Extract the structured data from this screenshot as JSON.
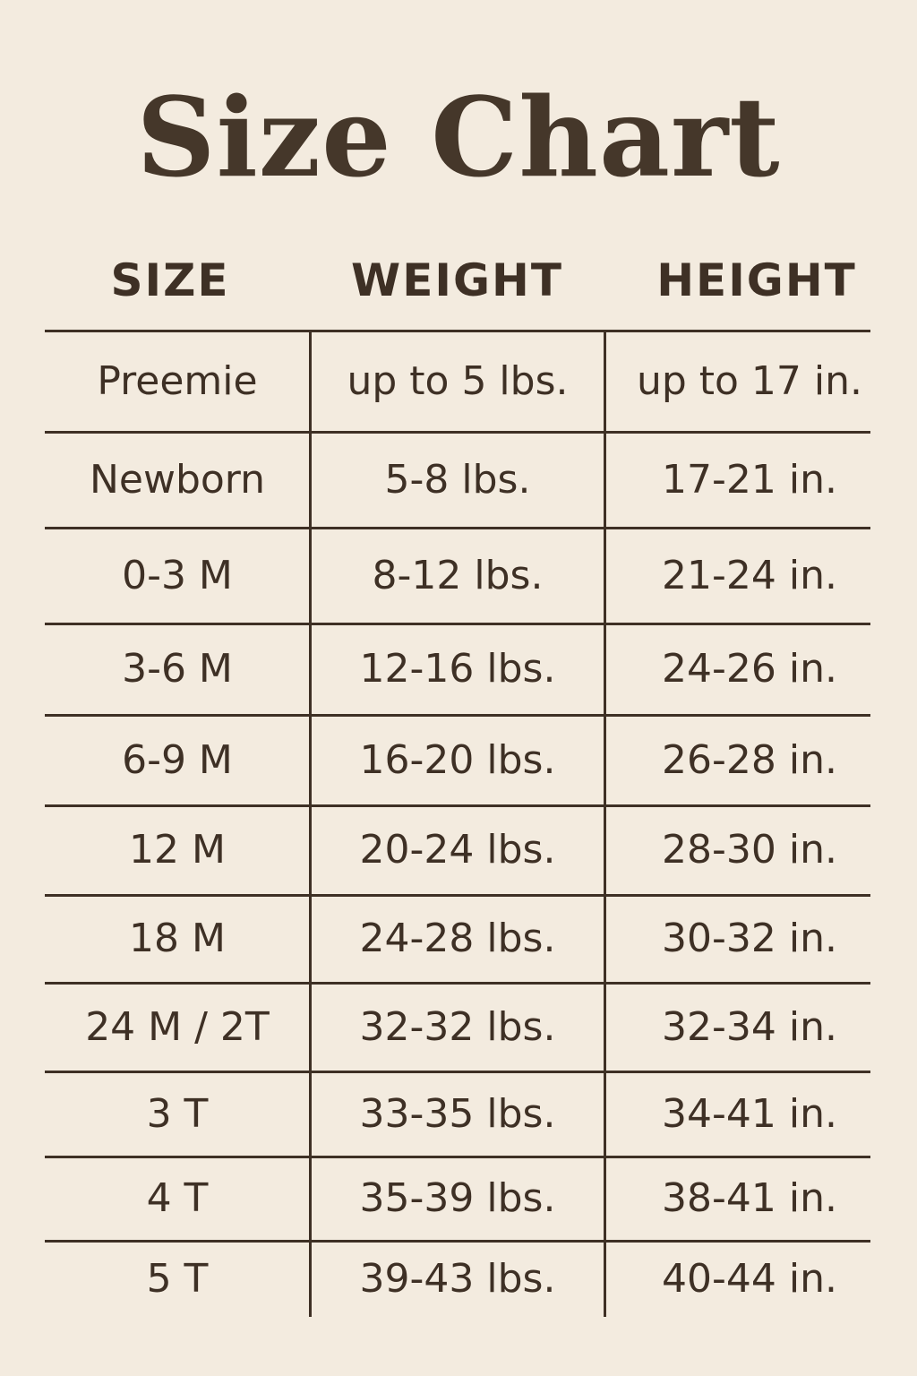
{
  "title": "Size Chart",
  "columns": [
    "SIZE",
    "WEIGHT",
    "HEIGHT"
  ],
  "rows": [
    [
      "Preemie",
      "up to 5 lbs.",
      "up to 17 in."
    ],
    [
      "Newborn",
      "5-8 lbs.",
      "17-21 in."
    ],
    [
      "0-3 M",
      "8-12 lbs.",
      "21-24 in."
    ],
    [
      "3-6 M",
      "12-16 lbs.",
      "24-26 in."
    ],
    [
      "6-9 M",
      "16-20 lbs.",
      "26-28 in."
    ],
    [
      "12 M",
      "20-24 lbs.",
      "28-30 in."
    ],
    [
      "18 M",
      "24-28 lbs.",
      "30-32 in."
    ],
    [
      "24 M / 2T",
      "32-32 lbs.",
      "32-34 in."
    ],
    [
      "3 T",
      "33-35 lbs.",
      "34-41 in."
    ],
    [
      "4 T",
      "35-39 lbs.",
      "38-41 in."
    ],
    [
      "5 T",
      "39-43 lbs.",
      "40-44 in."
    ]
  ],
  "colors": {
    "background": "#f3ebdf",
    "text": "#3e3025"
  }
}
